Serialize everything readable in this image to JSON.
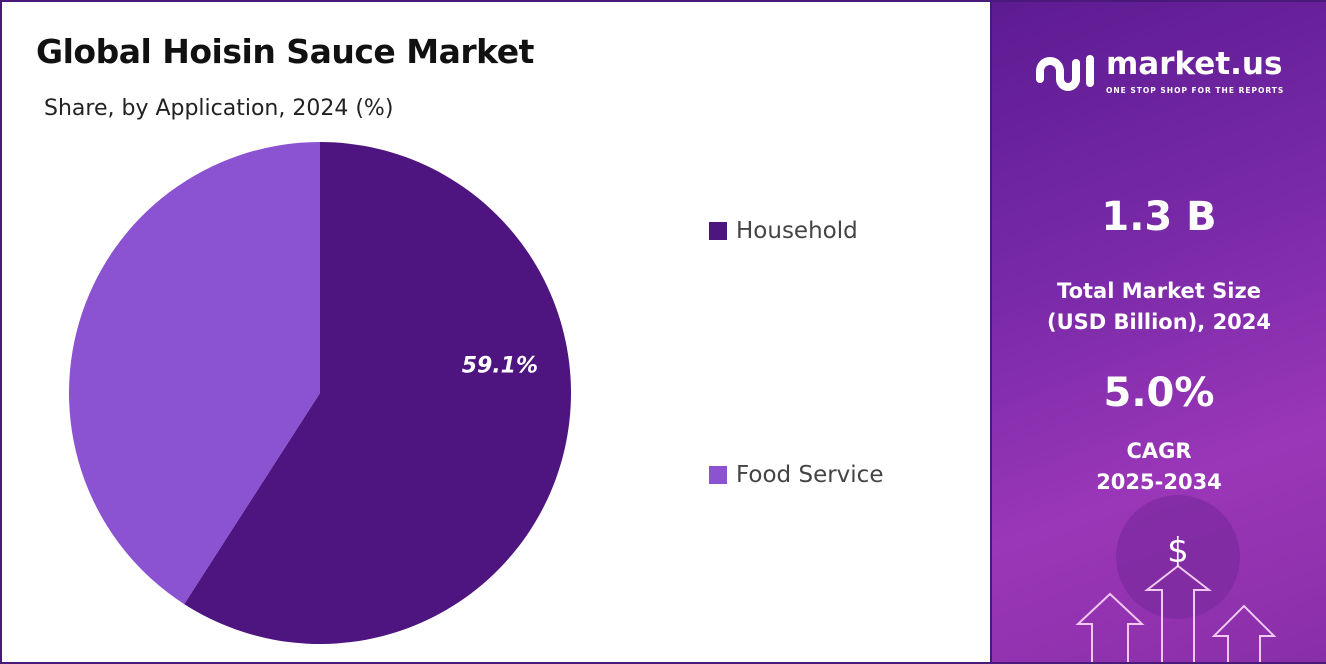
{
  "chart_data": {
    "type": "pie",
    "title": "Global Hoisin Sauce Market",
    "subtitle": "Share, by Application, 2024 (%)",
    "categories": [
      "Household",
      "Food Service"
    ],
    "values": [
      59.1,
      40.9
    ],
    "data_labels": [
      "59.1%",
      ""
    ],
    "colors": [
      "#4e1580",
      "#8b52d1"
    ],
    "legend_position": "right",
    "start_angle": "top, clockwise"
  },
  "panel": {
    "brand": "market.us",
    "tagline": "ONE STOP SHOP FOR THE REPORTS",
    "market_size": "1.3 B",
    "market_size_label_1": "Total Market Size",
    "market_size_label_2": "(USD Billion), 2024",
    "cagr": "5.0%",
    "cagr_label_1": "CAGR",
    "cagr_label_2": "2025-2034",
    "currency_symbol": "$"
  }
}
